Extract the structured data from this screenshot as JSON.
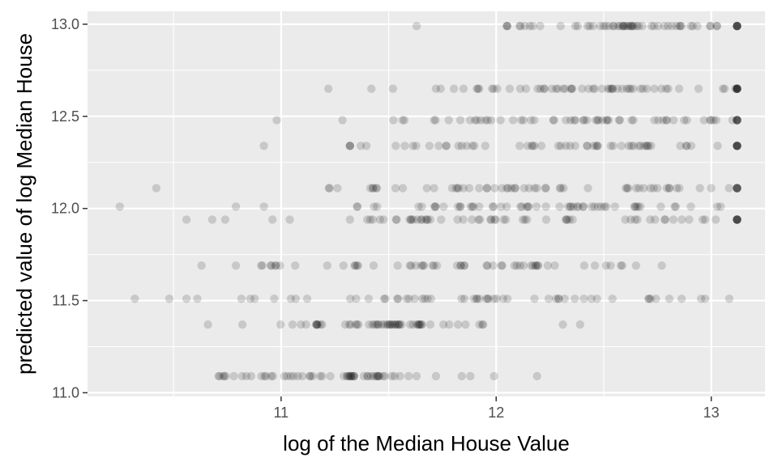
{
  "chart_data": {
    "type": "scatter",
    "title": "",
    "xlabel": "log of the Median House Value",
    "ylabel": "predicted value of log Median House",
    "xlim": [
      10.1,
      13.25
    ],
    "ylim": [
      10.98,
      13.07
    ],
    "xticks": [
      11,
      12,
      13
    ],
    "xtick_labels": [
      "11",
      "12",
      "13"
    ],
    "yticks": [
      11.0,
      11.5,
      12.0,
      12.5,
      13.0
    ],
    "ytick_labels": [
      "11.0",
      "11.5",
      "12.0",
      "12.5",
      "13.0"
    ],
    "grid": true,
    "point_color": "#000000",
    "point_alpha": 0.15,
    "panel_color": "#ebebeb",
    "rows": [
      {
        "y": 12.99,
        "x_min": 12.05,
        "x_max": 13.12,
        "extra": [
          11.63
        ],
        "capped": true
      },
      {
        "y": 12.65,
        "x_min": 11.72,
        "x_max": 13.12,
        "extra": [
          11.22,
          11.42,
          11.52
        ],
        "capped": true
      },
      {
        "y": 12.48,
        "x_min": 11.28,
        "x_max": 13.12,
        "extra": [
          10.98
        ],
        "capped": true
      },
      {
        "y": 12.34,
        "x_min": 11.32,
        "x_max": 13.12,
        "extra": [
          10.92
        ],
        "capped": true
      },
      {
        "y": 12.11,
        "x_min": 11.17,
        "x_max": 13.12,
        "extra": [
          10.42
        ],
        "capped": true
      },
      {
        "y": 12.01,
        "x_min": 11.18,
        "x_max": 13.12,
        "extra": [
          10.25,
          10.79,
          10.92
        ],
        "capped": false
      },
      {
        "y": 11.94,
        "x_min": 11.32,
        "x_max": 13.12,
        "extra": [
          10.56,
          10.68,
          10.74,
          10.96,
          11.04
        ],
        "capped": true
      },
      {
        "y": 11.69,
        "x_min": 10.88,
        "x_max": 12.77,
        "extra": [
          10.63,
          10.79
        ],
        "capped": false
      },
      {
        "y": 11.51,
        "x_min": 10.61,
        "x_max": 13.12,
        "extra": [
          10.32,
          10.48,
          10.56
        ],
        "capped": false
      },
      {
        "y": 11.37,
        "x_min": 10.87,
        "x_max": 12.03,
        "extra": [
          10.66,
          10.82,
          12.31,
          12.39
        ],
        "capped": false
      },
      {
        "y": 11.09,
        "x_min": 10.63,
        "x_max": 11.72,
        "extra": [
          11.84,
          11.88,
          11.99,
          12.19
        ],
        "capped": false
      }
    ]
  }
}
